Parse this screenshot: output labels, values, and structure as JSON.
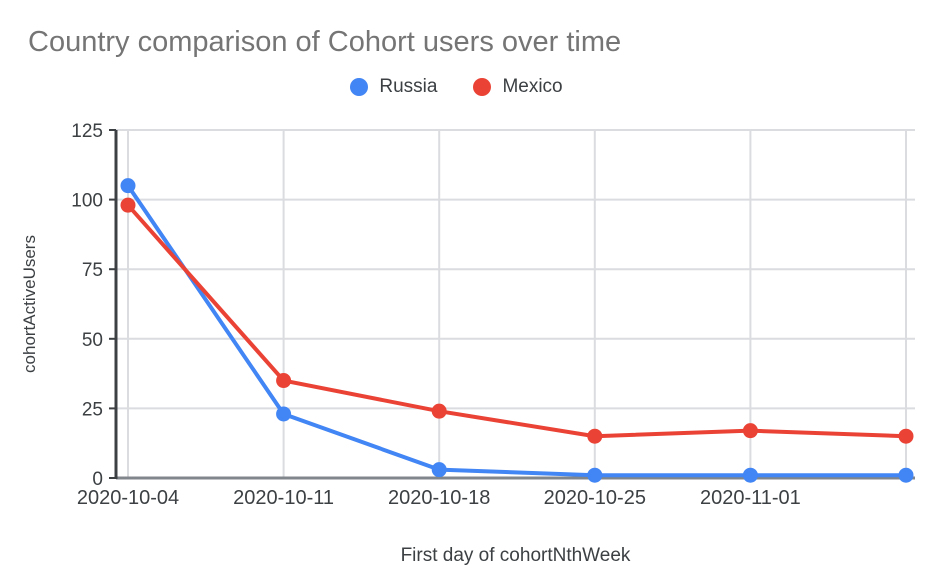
{
  "chart": {
    "background": "#ffffff",
    "title_color": "#757575",
    "tick_label_color": "#3c4043",
    "gridline_color": "#dadce0",
    "y_axis_line_color": "#3c4043",
    "x_baseline_color": "#80868b"
  },
  "chart_data": {
    "type": "line",
    "title": "Country comparison of Cohort users over time",
    "xlabel": "First day of cohortNthWeek",
    "ylabel": "cohortActiveUsers",
    "categories": [
      "2020-10-04",
      "2020-10-11",
      "2020-10-18",
      "2020-10-25",
      "2020-11-01",
      ""
    ],
    "series": [
      {
        "name": "Russia",
        "color": "#4285F4",
        "values": [
          105,
          23,
          3,
          1,
          1,
          1
        ]
      },
      {
        "name": "Mexico",
        "color": "#EA4335",
        "values": [
          98,
          35,
          24,
          15,
          17,
          15
        ]
      }
    ],
    "ylim": [
      0,
      125
    ],
    "yticks": [
      0,
      25,
      50,
      75,
      100,
      125
    ],
    "grid": true,
    "legend_position": "top",
    "marker": "circle"
  }
}
